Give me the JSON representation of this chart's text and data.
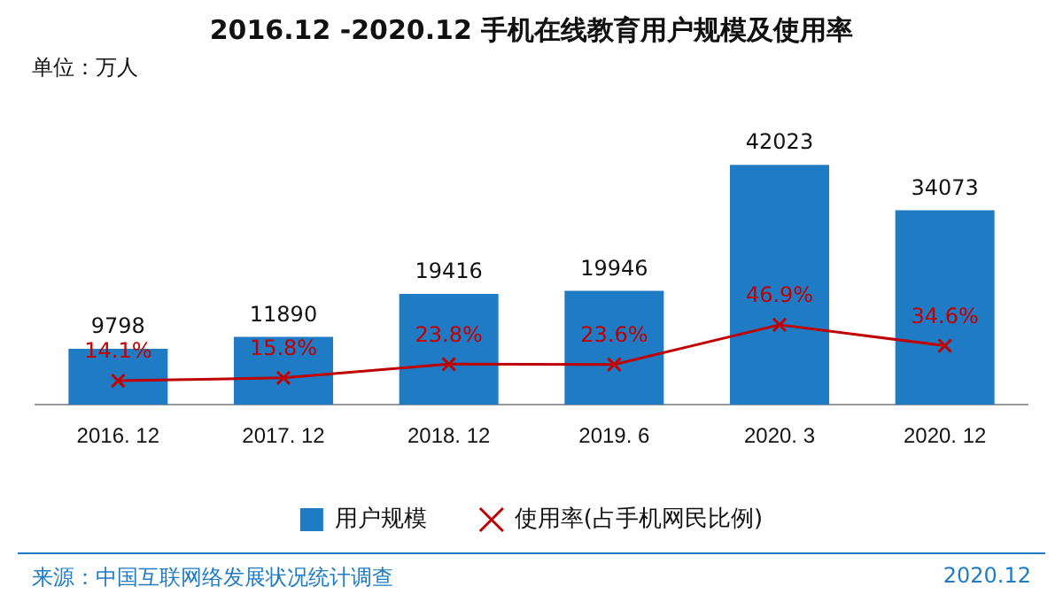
{
  "chart_data": {
    "type": "bar",
    "title": "2016.12 -2020.12 手机在线教育用户规模及使用率",
    "ylabel": "单位：万人",
    "tick_labels": "x",
    "categories": [
      "2016. 12",
      "2017. 12",
      "2018. 12",
      "2019. 6",
      "2020. 3",
      "2020. 12"
    ],
    "series": [
      {
        "name": "用户规模",
        "color": "#1f7bc4",
        "values": [
          9798,
          11890,
          19416,
          19946,
          42023,
          34073
        ]
      },
      {
        "name": "使用率(占手机网民比例)",
        "type": "line",
        "axis": "y2",
        "color": "#c00000",
        "marker": "cross",
        "value_labels": [
          "14.1%",
          "15.8%",
          "23.8%",
          "23.6%",
          "46.9%",
          "34.6%"
        ],
        "values": [
          14.1,
          15.8,
          23.8,
          23.6,
          46.9,
          34.6
        ]
      }
    ],
    "data_labels": true,
    "legend": "bottom",
    "grid": false,
    "annotations": [
      "来源：中国互联网络发展状况统计调查",
      "2020.12"
    ]
  }
}
